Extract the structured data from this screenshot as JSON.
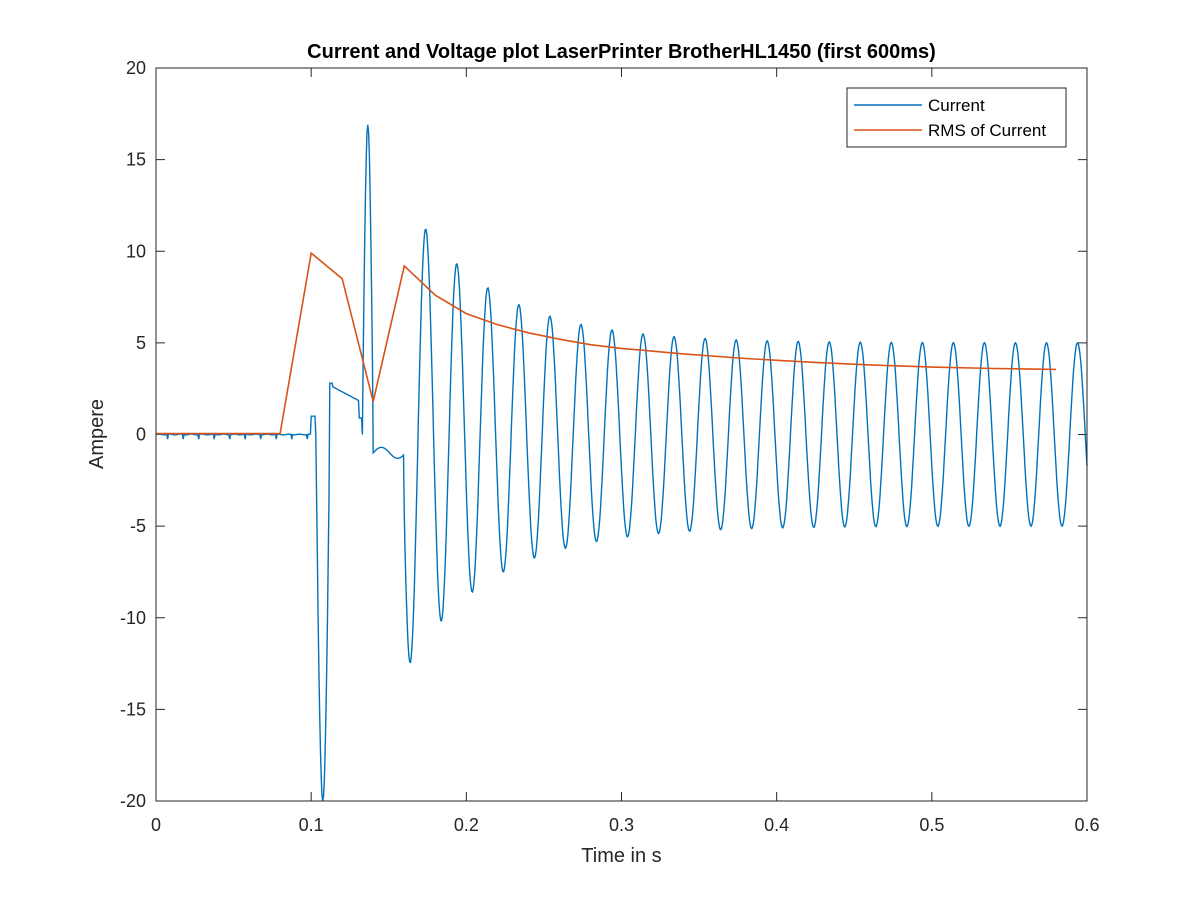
{
  "chart_data": {
    "type": "line",
    "title": "Current and Voltage plot LaserPrinter BrotherHL1450 (first 600ms)",
    "xlabel": "Time in s",
    "ylabel": "Ampere",
    "xlim": [
      0,
      0.6
    ],
    "ylim": [
      -20,
      20
    ],
    "xticks": [
      0,
      0.1,
      0.2,
      0.3,
      0.4,
      0.5,
      0.6
    ],
    "xtick_labels": [
      "0",
      "0.1",
      "0.2",
      "0.3",
      "0.4",
      "0.5",
      "0.6"
    ],
    "yticks": [
      -20,
      -15,
      -10,
      -5,
      0,
      5,
      10,
      15,
      20
    ],
    "ytick_labels": [
      "-20",
      "-15",
      "-10",
      "-5",
      "0",
      "5",
      "10",
      "15",
      "20"
    ],
    "grid": false,
    "legend_position": "top-right",
    "series": [
      {
        "name": "Current",
        "color": "#0072BD",
        "description": "approx 50 Hz AC inrush current",
        "key_points": {
          "idle_until": 0.1,
          "inrush_neg_peak": {
            "x": 0.107,
            "y": -20
          },
          "inrush_pos_peak": {
            "x": 0.136,
            "y": 16.9
          },
          "first_full_cycle_peak": {
            "x": 0.177,
            "y": 12.7
          },
          "first_full_cycle_trough": {
            "x": 0.167,
            "y": -13.3
          },
          "steady_amplitude": 5.0,
          "period": 0.02
        }
      },
      {
        "name": "RMS of Current",
        "color": "#D95319",
        "x": [
          0,
          0.08,
          0.1,
          0.12,
          0.14,
          0.16,
          0.18,
          0.2,
          0.22,
          0.24,
          0.26,
          0.28,
          0.3,
          0.34,
          0.38,
          0.42,
          0.46,
          0.5,
          0.54,
          0.58
        ],
        "y": [
          0.05,
          0.05,
          9.9,
          8.5,
          1.8,
          9.2,
          7.6,
          6.6,
          6.0,
          5.55,
          5.2,
          4.9,
          4.7,
          4.4,
          4.15,
          3.95,
          3.8,
          3.68,
          3.6,
          3.55
        ]
      }
    ]
  }
}
